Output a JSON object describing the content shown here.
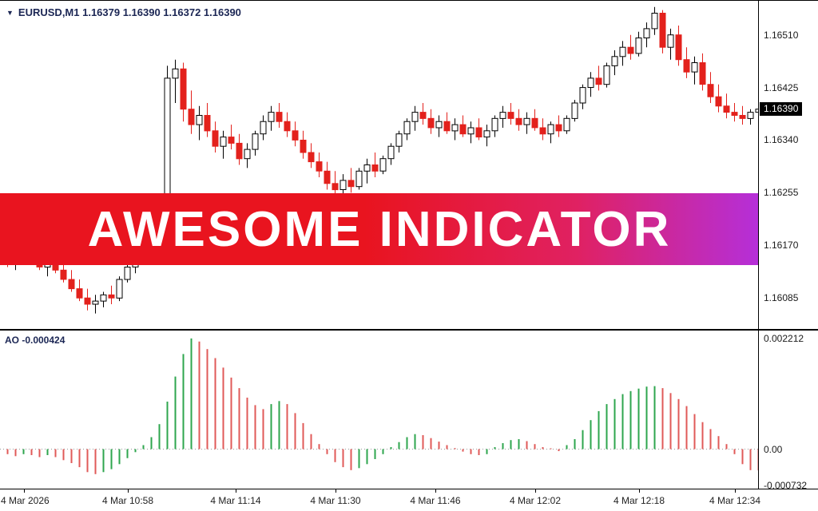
{
  "window": {
    "header": {
      "menu_icon": "▼",
      "text": "EURUSD,M1 1.16379 1.16390 1.16372 1.16390"
    },
    "banner": {
      "text": "AWESOME INDICATOR"
    },
    "current_price_label": "1.16390",
    "ao_label": "AO -0.000424"
  },
  "chart_data": {
    "type": "candlestick+ao-histogram",
    "symbol": "EURUSD",
    "timeframe": "M1",
    "ohlc_display": {
      "open": "1.16379",
      "high": "1.16390",
      "low": "1.16372",
      "close": "1.16390"
    },
    "price_panel": {
      "ylim": [
        1.16035,
        1.16565
      ],
      "grid_labels": [
        1.1651,
        1.16425,
        1.1634,
        1.16255,
        1.1617,
        1.16085
      ],
      "current_price": 1.1639,
      "candles": [
        [
          1.1615,
          1.16165,
          1.16135,
          1.16145
        ],
        [
          1.16145,
          1.1616,
          1.1613,
          1.16155
        ],
        [
          1.16155,
          1.16185,
          1.1615,
          1.16175
        ],
        [
          1.16175,
          1.16195,
          1.1615,
          1.16155
        ],
        [
          1.16155,
          1.1617,
          1.1613,
          1.16135
        ],
        [
          1.16135,
          1.1615,
          1.1612,
          1.16145
        ],
        [
          1.16145,
          1.16155,
          1.16125,
          1.1613
        ],
        [
          1.1613,
          1.16145,
          1.1611,
          1.16115
        ],
        [
          1.16115,
          1.1613,
          1.16095,
          1.161
        ],
        [
          1.161,
          1.16115,
          1.1608,
          1.16085
        ],
        [
          1.16085,
          1.161,
          1.16065,
          1.16075
        ],
        [
          1.16075,
          1.1609,
          1.1606,
          1.1608
        ],
        [
          1.1608,
          1.16095,
          1.1607,
          1.1609
        ],
        [
          1.1609,
          1.16105,
          1.16075,
          1.16085
        ],
        [
          1.16085,
          1.1612,
          1.1608,
          1.16115
        ],
        [
          1.16115,
          1.1614,
          1.1611,
          1.16135
        ],
        [
          1.16135,
          1.1616,
          1.16125,
          1.16155
        ],
        [
          1.16155,
          1.1618,
          1.1615,
          1.16175
        ],
        [
          1.16175,
          1.162,
          1.16165,
          1.1619
        ],
        [
          1.1619,
          1.16215,
          1.1618,
          1.16205
        ],
        [
          1.1615,
          1.1646,
          1.16145,
          1.1644
        ],
        [
          1.1644,
          1.1647,
          1.164,
          1.16455
        ],
        [
          1.16455,
          1.16465,
          1.1637,
          1.1639
        ],
        [
          1.1639,
          1.1642,
          1.1635,
          1.16365
        ],
        [
          1.16365,
          1.16395,
          1.1634,
          1.1638
        ],
        [
          1.1638,
          1.164,
          1.16345,
          1.16355
        ],
        [
          1.16355,
          1.1637,
          1.1632,
          1.1633
        ],
        [
          1.1633,
          1.16355,
          1.1631,
          1.16345
        ],
        [
          1.16345,
          1.16365,
          1.16325,
          1.16335
        ],
        [
          1.16335,
          1.1635,
          1.163,
          1.1631
        ],
        [
          1.1631,
          1.16335,
          1.16295,
          1.16325
        ],
        [
          1.16325,
          1.16355,
          1.16315,
          1.1635
        ],
        [
          1.1635,
          1.1638,
          1.1634,
          1.1637
        ],
        [
          1.1637,
          1.16395,
          1.16355,
          1.16385
        ],
        [
          1.16385,
          1.164,
          1.1636,
          1.1637
        ],
        [
          1.1637,
          1.16385,
          1.16345,
          1.16355
        ],
        [
          1.16355,
          1.1637,
          1.1633,
          1.1634
        ],
        [
          1.1634,
          1.16355,
          1.1631,
          1.1632
        ],
        [
          1.1632,
          1.16335,
          1.16295,
          1.16305
        ],
        [
          1.16305,
          1.1632,
          1.1628,
          1.1629
        ],
        [
          1.1629,
          1.16305,
          1.1626,
          1.1627
        ],
        [
          1.1627,
          1.1629,
          1.1625,
          1.1626
        ],
        [
          1.1626,
          1.16285,
          1.1625,
          1.16275
        ],
        [
          1.16275,
          1.16295,
          1.16255,
          1.16265
        ],
        [
          1.16265,
          1.16295,
          1.1626,
          1.1629
        ],
        [
          1.1629,
          1.1631,
          1.1627,
          1.163
        ],
        [
          1.163,
          1.1632,
          1.1628,
          1.1629
        ],
        [
          1.1629,
          1.16315,
          1.16285,
          1.1631
        ],
        [
          1.1631,
          1.16335,
          1.163,
          1.1633
        ],
        [
          1.1633,
          1.16355,
          1.1632,
          1.1635
        ],
        [
          1.1635,
          1.16375,
          1.1634,
          1.1637
        ],
        [
          1.1637,
          1.16395,
          1.16355,
          1.16385
        ],
        [
          1.16385,
          1.164,
          1.16365,
          1.16375
        ],
        [
          1.16375,
          1.1639,
          1.1635,
          1.1636
        ],
        [
          1.1636,
          1.1638,
          1.16345,
          1.1637
        ],
        [
          1.1637,
          1.16385,
          1.1635,
          1.16355
        ],
        [
          1.16355,
          1.16375,
          1.1634,
          1.16365
        ],
        [
          1.16365,
          1.1638,
          1.16345,
          1.1635
        ],
        [
          1.1635,
          1.1637,
          1.16335,
          1.1636
        ],
        [
          1.1636,
          1.16375,
          1.1634,
          1.16345
        ],
        [
          1.16345,
          1.16365,
          1.1633,
          1.16355
        ],
        [
          1.16355,
          1.1638,
          1.16345,
          1.16375
        ],
        [
          1.16375,
          1.16395,
          1.1636,
          1.16385
        ],
        [
          1.16385,
          1.164,
          1.16365,
          1.16375
        ],
        [
          1.16375,
          1.1639,
          1.16355,
          1.16365
        ],
        [
          1.16365,
          1.16385,
          1.1635,
          1.16375
        ],
        [
          1.16375,
          1.1639,
          1.16355,
          1.1636
        ],
        [
          1.1636,
          1.16375,
          1.1634,
          1.1635
        ],
        [
          1.1635,
          1.1637,
          1.16335,
          1.16365
        ],
        [
          1.16365,
          1.1638,
          1.16345,
          1.16355
        ],
        [
          1.16355,
          1.1638,
          1.1635,
          1.16375
        ],
        [
          1.16375,
          1.16405,
          1.1637,
          1.164
        ],
        [
          1.164,
          1.1643,
          1.1639,
          1.16425
        ],
        [
          1.16425,
          1.1645,
          1.1641,
          1.1644
        ],
        [
          1.1644,
          1.1646,
          1.1642,
          1.1643
        ],
        [
          1.1643,
          1.16465,
          1.16425,
          1.1646
        ],
        [
          1.1646,
          1.16485,
          1.16445,
          1.16475
        ],
        [
          1.16475,
          1.165,
          1.1646,
          1.1649
        ],
        [
          1.1649,
          1.1651,
          1.1647,
          1.1648
        ],
        [
          1.1648,
          1.16515,
          1.16475,
          1.16505
        ],
        [
          1.16505,
          1.1653,
          1.1649,
          1.1652
        ],
        [
          1.1652,
          1.16555,
          1.1651,
          1.16545
        ],
        [
          1.16545,
          1.1655,
          1.1648,
          1.1649
        ],
        [
          1.1649,
          1.1652,
          1.1647,
          1.1651
        ],
        [
          1.1651,
          1.16525,
          1.1646,
          1.1647
        ],
        [
          1.1647,
          1.1649,
          1.1644,
          1.1645
        ],
        [
          1.1645,
          1.16475,
          1.1643,
          1.16465
        ],
        [
          1.16465,
          1.1648,
          1.1642,
          1.1643
        ],
        [
          1.1643,
          1.1645,
          1.164,
          1.1641
        ],
        [
          1.1641,
          1.1643,
          1.16385,
          1.16395
        ],
        [
          1.16395,
          1.16415,
          1.16375,
          1.16385
        ],
        [
          1.16385,
          1.164,
          1.1637,
          1.1638
        ],
        [
          1.1638,
          1.16395,
          1.16365,
          1.16375
        ],
        [
          1.16375,
          1.1639,
          1.16365,
          1.16385
        ],
        [
          1.16385,
          1.16395,
          1.16375,
          1.1639
        ]
      ]
    },
    "ao_panel": {
      "indicator": "Awesome Oscillator",
      "last_value": -0.000424,
      "ylim": [
        -0.00079,
        0.00237
      ],
      "axis": [
        {
          "label": "0.002212",
          "value": 0.002212
        },
        {
          "label": "0.00",
          "value": 0
        },
        {
          "label": "-0.000732",
          "value": -0.000732
        }
      ],
      "values": [
        -0.0001,
        -0.00014,
        -0.0001,
        -0.00012,
        -0.00016,
        -0.00012,
        -0.00016,
        -0.00022,
        -0.00028,
        -0.00036,
        -0.00046,
        -0.0005,
        -0.00046,
        -0.0004,
        -0.0003,
        -0.00018,
        -6e-05,
        8e-05,
        0.00024,
        0.0005,
        0.00095,
        0.00145,
        0.0019,
        0.002212,
        0.00215,
        0.002,
        0.00182,
        0.00163,
        0.00143,
        0.00122,
        0.00103,
        0.00088,
        0.0008,
        0.0009,
        0.00096,
        0.0009,
        0.00072,
        0.00052,
        0.0003,
        0.0001,
        -0.0001,
        -0.00026,
        -0.00036,
        -0.00042,
        -0.00038,
        -0.0003,
        -0.0002,
        -0.0001,
        4e-05,
        0.00014,
        0.00024,
        0.0003,
        0.00028,
        0.00022,
        0.00015,
        8e-05,
        2e-05,
        -5e-05,
        -0.0001,
        -0.00012,
        -0.0001,
        4e-05,
        0.00012,
        0.00018,
        0.0002,
        0.00016,
        0.0001,
        4e-05,
        0.0,
        -4e-05,
        8e-05,
        0.0002,
        0.00038,
        0.00058,
        0.00076,
        0.0009,
        0.001,
        0.0011,
        0.00116,
        0.00121,
        0.00125,
        0.00126,
        0.00122,
        0.00112,
        0.001,
        0.00086,
        0.0007,
        0.00054,
        0.0004,
        0.00026,
        0.0001,
        -0.0001,
        -0.0003,
        -0.00042,
        -0.000424
      ]
    },
    "time_labels": [
      "4 Mar 2026",
      "4 Mar 10:58",
      "4 Mar 11:14",
      "4 Mar 11:30",
      "4 Mar 11:46",
      "4 Mar 12:02",
      "4 Mar 12:18",
      "4 Mar 12:34"
    ],
    "colors": {
      "bull_body": "#ffffff",
      "bull_border": "#000000",
      "bear": "#e3211c",
      "ao_up": "#2ea64e",
      "ao_down": "#e05a58",
      "banner_from": "#e9141f",
      "banner_to": "#b52fd9"
    }
  }
}
